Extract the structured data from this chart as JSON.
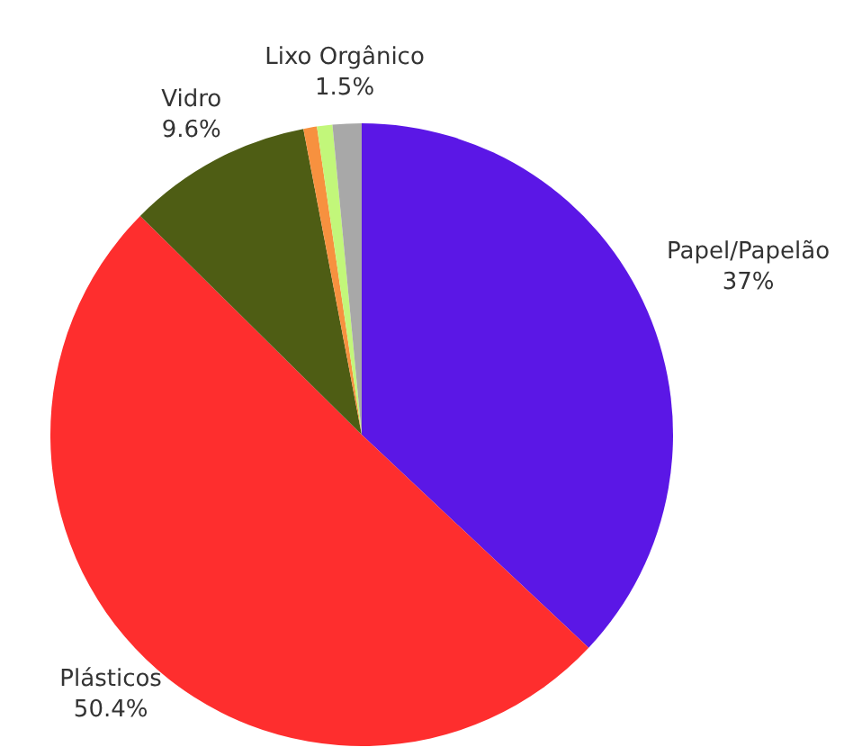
{
  "chart_data": {
    "type": "pie",
    "categories": [
      "Papel/Papelão",
      "Plásticos",
      "Vidro",
      null,
      null,
      "Lixo Orgânico"
    ],
    "values": [
      37,
      50.4,
      9.6,
      0.7,
      0.8,
      1.5
    ],
    "value_labels": [
      "37%",
      "50.4%",
      "9.6%",
      null,
      null,
      "1.5%"
    ],
    "colors": [
      "#5b17e6",
      "#fe2e2e",
      "#4e5d14",
      "#f7913f",
      "#c2f77a",
      "#a8a8a8"
    ],
    "legend": false
  }
}
